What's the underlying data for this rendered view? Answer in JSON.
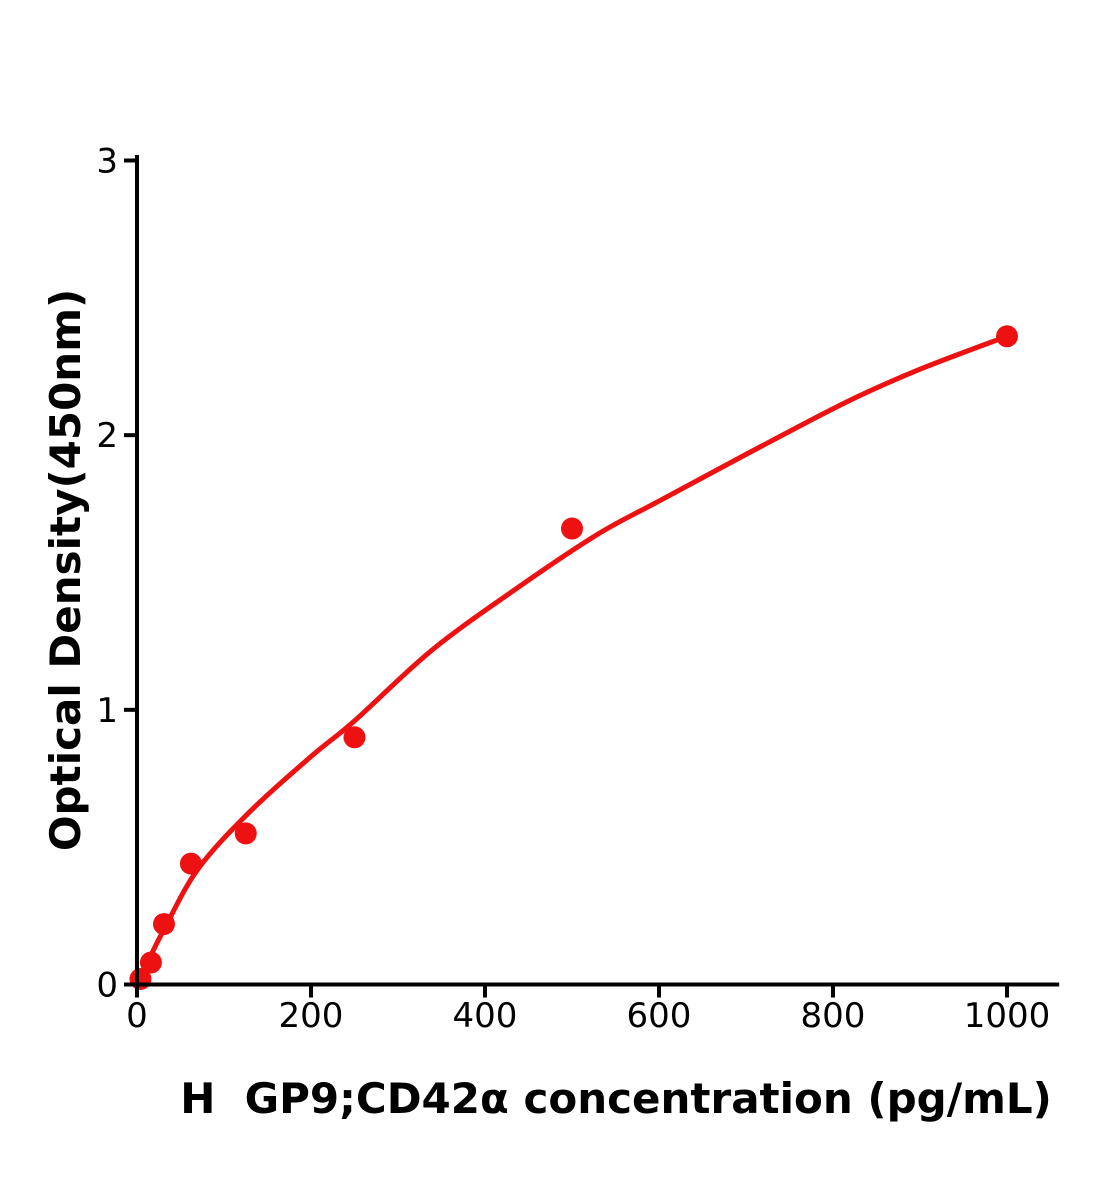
{
  "page": {
    "background": "#ffffff"
  },
  "chart_data": {
    "type": "scatter",
    "title": "",
    "xlabel": "H  GP9;CD42α concentration (pg/mL)",
    "ylabel": "Optical Density(450nm)",
    "xlim": [
      0,
      1060
    ],
    "ylim": [
      0,
      3.02
    ],
    "x_ticks": [
      0,
      200,
      400,
      600,
      800,
      1000
    ],
    "y_ticks": [
      0,
      1,
      2,
      3
    ],
    "grid": false,
    "legend": null,
    "axis_color": "#000000",
    "text_color": "#000000",
    "series": [
      {
        "name": "standard-points",
        "kind": "scatter",
        "color": "#ee1111",
        "marker": "circle",
        "points": [
          [
            4,
            0.02
          ],
          [
            16,
            0.08
          ],
          [
            31,
            0.22
          ],
          [
            62,
            0.44
          ],
          [
            125,
            0.55
          ],
          [
            250,
            0.9
          ],
          [
            500,
            1.66
          ],
          [
            1000,
            2.36
          ]
        ]
      },
      {
        "name": "fitted-curve",
        "kind": "line",
        "color": "#ee1111",
        "points": [
          [
            0,
            0.0
          ],
          [
            15,
            0.1
          ],
          [
            31,
            0.2
          ],
          [
            70,
            0.42
          ],
          [
            130,
            0.63
          ],
          [
            200,
            0.83
          ],
          [
            250,
            0.96
          ],
          [
            340,
            1.22
          ],
          [
            440,
            1.45
          ],
          [
            530,
            1.64
          ],
          [
            600,
            1.76
          ],
          [
            700,
            1.93
          ],
          [
            815,
            2.12
          ],
          [
            900,
            2.24
          ],
          [
            1000,
            2.36
          ]
        ]
      }
    ]
  }
}
